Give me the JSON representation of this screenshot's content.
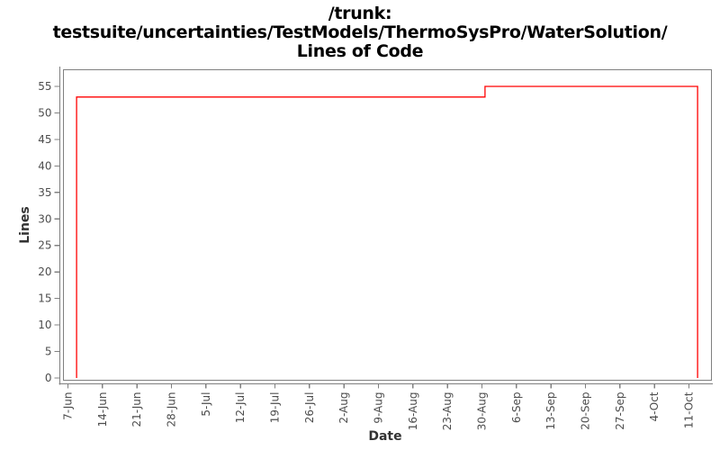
{
  "chart_data": {
    "type": "line",
    "title_lines": [
      "/trunk:",
      "testsuite/uncertainties/TestModels/ThermoSysPro/WaterSolution/",
      "Lines of Code"
    ],
    "xlabel": "Date",
    "ylabel": "Lines",
    "x_ticks": [
      "7-Jun",
      "14-Jun",
      "21-Jun",
      "28-Jun",
      "5-Jul",
      "12-Jul",
      "19-Jul",
      "26-Jul",
      "2-Aug",
      "9-Aug",
      "16-Aug",
      "23-Aug",
      "30-Aug",
      "6-Sep",
      "13-Sep",
      "20-Sep",
      "27-Sep",
      "4-Oct",
      "11-Oct"
    ],
    "y_ticks": [
      0,
      5,
      10,
      15,
      20,
      25,
      30,
      35,
      40,
      45,
      50,
      55
    ],
    "ylim": [
      0,
      58
    ],
    "grid": false,
    "legend": "none",
    "series": [
      {
        "name": "Lines of Code",
        "color": "#ff0000",
        "points": [
          {
            "date": "9-Jun",
            "x": 0.25,
            "y": 0
          },
          {
            "date": "9-Jun",
            "x": 0.25,
            "y": 53
          },
          {
            "date": "30-Aug",
            "x": 12.09,
            "y": 53
          },
          {
            "date": "30-Aug",
            "x": 12.09,
            "y": 55
          },
          {
            "date": "13-Oct",
            "x": 18.25,
            "y": 55
          },
          {
            "date": "13-Oct",
            "x": 18.25,
            "y": 0
          }
        ]
      }
    ],
    "colors": {
      "line": "#ff0000",
      "frame": "#808080",
      "tick_text": "#4d4d4d",
      "axis_title_text": "#333333",
      "title_text": "#000000"
    }
  }
}
